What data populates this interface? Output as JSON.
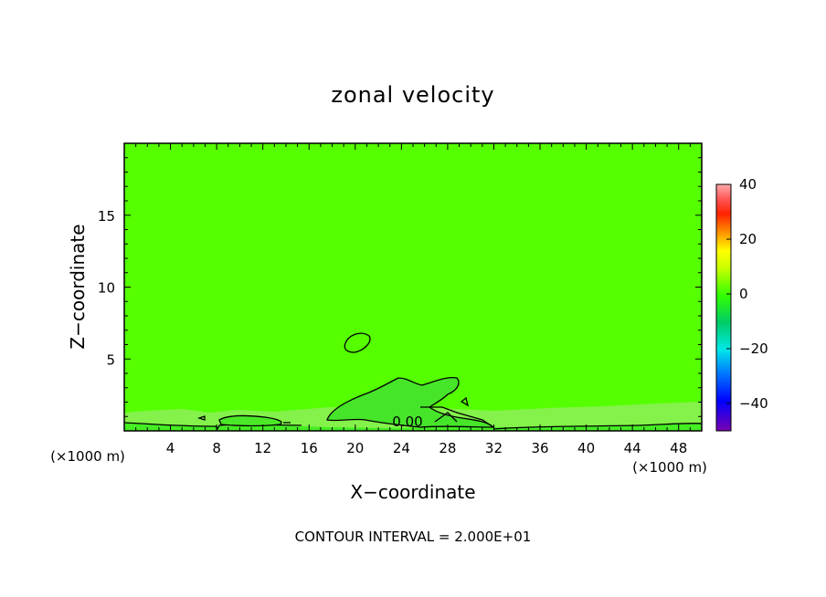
{
  "chart_data": {
    "type": "heatmap",
    "title": "zonal velocity",
    "xlabel": "X−coordinate",
    "ylabel": "Z−coordinate",
    "x_unit": "(×1000 m)",
    "z_unit": "(×1000 m)",
    "xlim": [
      0,
      50
    ],
    "ylim": [
      0,
      20
    ],
    "x_ticks": [
      4,
      8,
      12,
      16,
      20,
      24,
      28,
      32,
      36,
      40,
      44,
      48
    ],
    "y_ticks": [
      5,
      10,
      15
    ],
    "colorbar": {
      "range": [
        -50,
        40
      ],
      "ticks": [
        40,
        20,
        0,
        -20,
        -40
      ]
    },
    "contour_label": "0.00",
    "contour_interval_text": "CONTOUR INTERVAL = 2.000E+01",
    "field_value_approx": 0,
    "colors": {
      "field": "#55ff00",
      "near_surface": "#80ee40",
      "anomaly": "#40dd30"
    }
  }
}
